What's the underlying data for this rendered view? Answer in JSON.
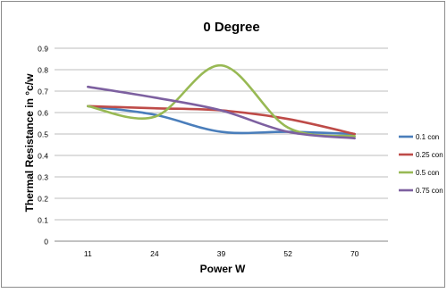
{
  "chart_data": {
    "type": "line",
    "title": "0 Degree",
    "xlabel": "Power W",
    "ylabel": "Thermal Resistance in °c/w",
    "categories": [
      "11",
      "24",
      "39",
      "52",
      "70"
    ],
    "ylim": [
      0,
      0.9
    ],
    "ytick_labels": [
      "0",
      "0.1",
      "0.2",
      "0.3",
      "0.4",
      "0.5",
      "0.6",
      "0.7",
      "0.8",
      "0.9"
    ],
    "grid": true,
    "legend_position": "right",
    "series": [
      {
        "name": "0.1 con",
        "color": "#4a7ebb",
        "values": [
          0.63,
          0.59,
          0.51,
          0.51,
          0.5
        ]
      },
      {
        "name": "0.25 con",
        "color": "#be4b48",
        "values": [
          0.63,
          0.62,
          0.61,
          0.57,
          0.5
        ]
      },
      {
        "name": "0.5 con",
        "color": "#98b954",
        "values": [
          0.63,
          0.58,
          0.82,
          0.53,
          0.49
        ]
      },
      {
        "name": "0.75 con",
        "color": "#7d60a0",
        "values": [
          0.72,
          0.67,
          0.61,
          0.51,
          0.48
        ]
      }
    ]
  }
}
